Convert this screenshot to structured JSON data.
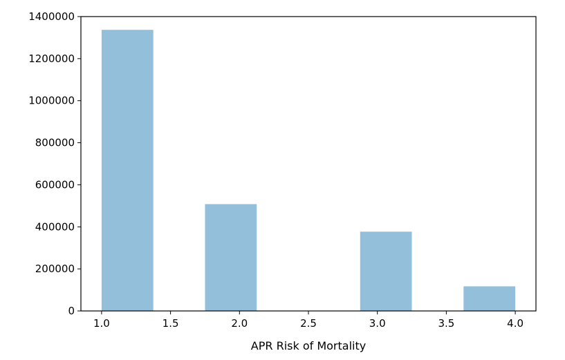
{
  "chart_data": {
    "type": "bar",
    "title": "",
    "xlabel": "APR Risk of Mortality",
    "ylabel": "",
    "xlim": [
      0.85,
      4.15
    ],
    "ylim": [
      0,
      1400000
    ],
    "xticks": [
      "1.0",
      "1.5",
      "2.0",
      "2.5",
      "3.0",
      "3.5",
      "4.0"
    ],
    "xtick_values": [
      1.0,
      1.5,
      2.0,
      2.5,
      3.0,
      3.5,
      4.0
    ],
    "yticks": [
      "0",
      "200000",
      "400000",
      "600000",
      "800000",
      "1000000",
      "1200000",
      "1400000"
    ],
    "ytick_values": [
      0,
      200000,
      400000,
      600000,
      800000,
      1000000,
      1200000,
      1400000
    ],
    "bins": [
      {
        "x0": 1.0,
        "x1": 1.375,
        "value": 1337000
      },
      {
        "x0": 1.75,
        "x1": 2.125,
        "value": 508000
      },
      {
        "x0": 2.875,
        "x1": 3.25,
        "value": 377000
      },
      {
        "x0": 3.625,
        "x1": 4.0,
        "value": 117000
      }
    ],
    "bar_color": "#94bfdb",
    "grid": false,
    "legend": "none"
  }
}
